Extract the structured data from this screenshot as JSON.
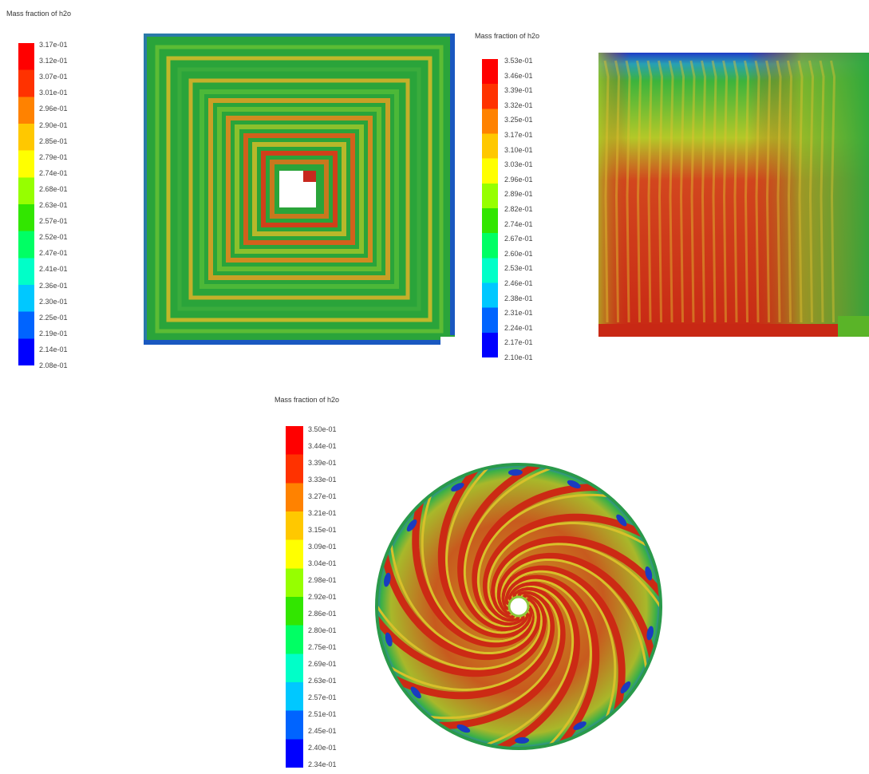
{
  "colors": {
    "cfd_red": "#d42a10",
    "cfd_orange": "#e88e14",
    "cfd_yellow": "#c8c81e",
    "cfd_green": "#2fb43a",
    "cfd_cyan": "#1ec8c8",
    "cfd_blue": "#1432d2",
    "cfd_navy": "#0a14a0",
    "background": "#ffffff"
  },
  "colormap_stops": [
    "#0000ff",
    "#0064ff",
    "#00c8ff",
    "#00ffc8",
    "#00ff64",
    "#32e600",
    "#96ff00",
    "#ffff00",
    "#ffc800",
    "#ff8200",
    "#ff3200",
    "#ff0000"
  ],
  "legends": {
    "square": {
      "title": "Mass fraction of h2o",
      "ticks": [
        "3.17e-01",
        "3.12e-01",
        "3.07e-01",
        "3.01e-01",
        "2.96e-01",
        "2.90e-01",
        "2.85e-01",
        "2.79e-01",
        "2.74e-01",
        "2.68e-01",
        "2.63e-01",
        "2.57e-01",
        "2.52e-01",
        "2.47e-01",
        "2.41e-01",
        "2.36e-01",
        "2.30e-01",
        "2.25e-01",
        "2.19e-01",
        "2.14e-01",
        "2.08e-01"
      ]
    },
    "section": {
      "title": "Mass fraction of h2o",
      "ticks": [
        "3.53e-01",
        "3.46e-01",
        "3.39e-01",
        "3.32e-01",
        "3.25e-01",
        "3.17e-01",
        "3.10e-01",
        "3.03e-01",
        "2.96e-01",
        "2.89e-01",
        "2.82e-01",
        "2.74e-01",
        "2.67e-01",
        "2.60e-01",
        "2.53e-01",
        "2.46e-01",
        "2.38e-01",
        "2.31e-01",
        "2.24e-01",
        "2.17e-01",
        "2.10e-01"
      ]
    },
    "circle": {
      "title": "Mass fraction of h2o",
      "ticks": [
        "3.50e-01",
        "3.44e-01",
        "3.39e-01",
        "3.33e-01",
        "3.27e-01",
        "3.21e-01",
        "3.15e-01",
        "3.09e-01",
        "3.04e-01",
        "2.98e-01",
        "2.92e-01",
        "2.86e-01",
        "2.80e-01",
        "2.75e-01",
        "2.69e-01",
        "2.63e-01",
        "2.57e-01",
        "2.51e-01",
        "2.45e-01",
        "2.40e-01",
        "2.34e-01"
      ]
    }
  }
}
